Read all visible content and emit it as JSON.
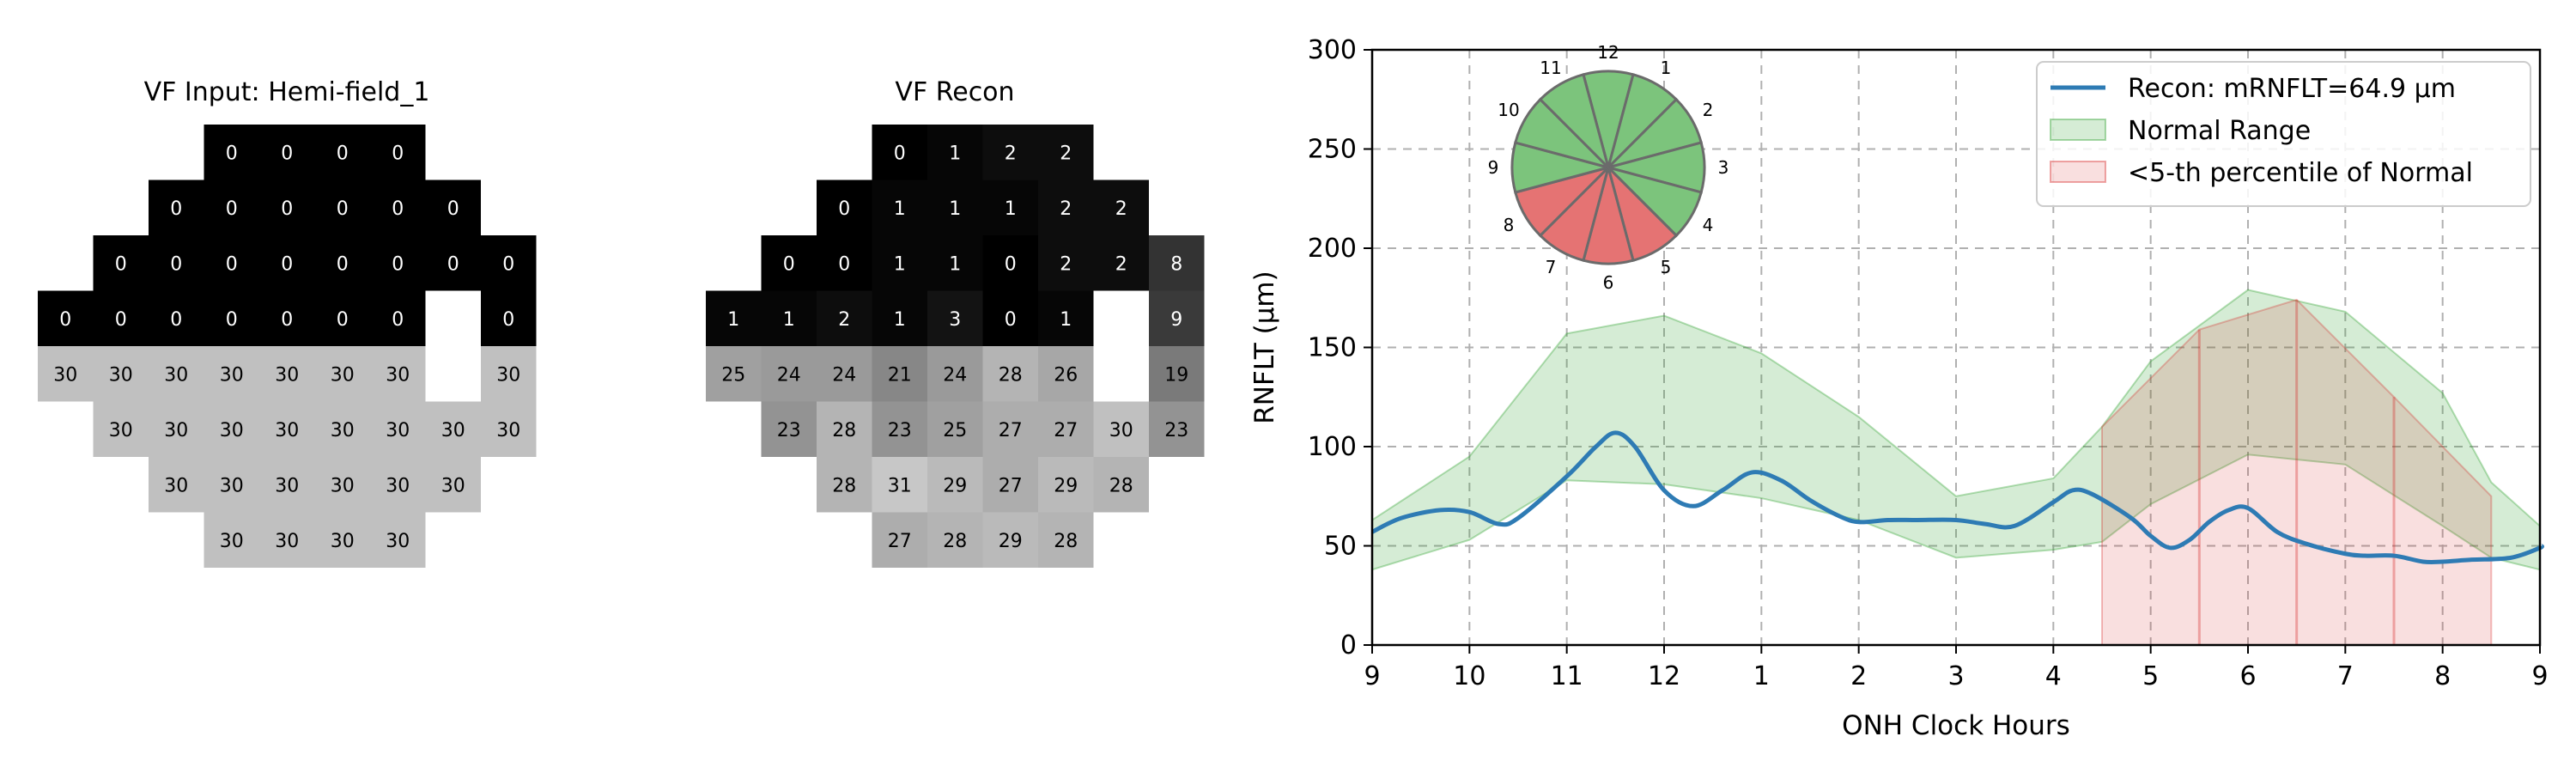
{
  "left_panel": {
    "title": "VF Input: Hemi-field_1",
    "rows": [
      {
        "start": 3,
        "cells": [
          0,
          0,
          0,
          0
        ]
      },
      {
        "start": 2,
        "cells": [
          0,
          0,
          0,
          0,
          0,
          0
        ]
      },
      {
        "start": 1,
        "cells": [
          0,
          0,
          0,
          0,
          0,
          0,
          0,
          0
        ]
      },
      {
        "start": 0,
        "cells": [
          0,
          0,
          0,
          0,
          0,
          0,
          0,
          null,
          0
        ]
      },
      {
        "start": 0,
        "cells": [
          30,
          30,
          30,
          30,
          30,
          30,
          30,
          null,
          30
        ]
      },
      {
        "start": 1,
        "cells": [
          30,
          30,
          30,
          30,
          30,
          30,
          30,
          30
        ]
      },
      {
        "start": 2,
        "cells": [
          30,
          30,
          30,
          30,
          30,
          30
        ]
      },
      {
        "start": 3,
        "cells": [
          30,
          30,
          30,
          30
        ]
      }
    ]
  },
  "middle_panel": {
    "title": "VF Recon",
    "rows": [
      {
        "start": 3,
        "cells": [
          0,
          1,
          2,
          2
        ]
      },
      {
        "start": 2,
        "cells": [
          0,
          1,
          1,
          1,
          2,
          2
        ]
      },
      {
        "start": 1,
        "cells": [
          0,
          0,
          1,
          1,
          0,
          2,
          2,
          8
        ]
      },
      {
        "start": 0,
        "cells": [
          1,
          1,
          2,
          1,
          3,
          0,
          1,
          null,
          9
        ]
      },
      {
        "start": 0,
        "cells": [
          25,
          24,
          24,
          21,
          24,
          28,
          26,
          null,
          19
        ]
      },
      {
        "start": 1,
        "cells": [
          23,
          28,
          23,
          25,
          27,
          27,
          30,
          23
        ]
      },
      {
        "start": 2,
        "cells": [
          28,
          31,
          29,
          27,
          29,
          28
        ]
      },
      {
        "start": 3,
        "cells": [
          27,
          28,
          29,
          28
        ]
      }
    ]
  },
  "chart_data": {
    "type": "line",
    "title": "",
    "xlabel": "ONH Clock Hours",
    "ylabel": "RNFLT (μm)",
    "ylim": [
      0,
      300
    ],
    "yticks": [
      0,
      50,
      100,
      150,
      200,
      250,
      300
    ],
    "xticks": [
      "9",
      "10",
      "11",
      "12",
      "1",
      "2",
      "3",
      "4",
      "5",
      "6",
      "7",
      "8",
      "9"
    ],
    "grid": true,
    "legend_position": "top-right",
    "series": [
      {
        "name": "Recon: mRNFLT=64.9 μm",
        "color": "#2e7bb4",
        "points": [
          [
            9,
            57
          ],
          [
            9.3,
            64
          ],
          [
            9.7,
            68
          ],
          [
            10,
            67
          ],
          [
            10.3,
            61
          ],
          [
            10.5,
            64
          ],
          [
            11,
            85
          ],
          [
            11.3,
            100
          ],
          [
            11.5,
            107
          ],
          [
            11.7,
            100
          ],
          [
            12,
            78
          ],
          [
            12.3,
            70
          ],
          [
            12.6,
            78
          ],
          [
            12.9,
            87
          ],
          [
            13.2,
            83
          ],
          [
            13.5,
            73
          ],
          [
            13.8,
            65
          ],
          [
            14,
            62
          ],
          [
            14.3,
            63
          ],
          [
            14.6,
            63
          ],
          [
            15,
            63
          ],
          [
            15.3,
            61
          ],
          [
            15.6,
            60
          ],
          [
            16,
            72
          ],
          [
            16.2,
            78
          ],
          [
            16.4,
            76
          ],
          [
            16.8,
            64
          ],
          [
            17,
            55
          ],
          [
            17.2,
            49
          ],
          [
            17.4,
            53
          ],
          [
            17.6,
            62
          ],
          [
            17.8,
            68
          ],
          [
            18,
            69
          ],
          [
            18.3,
            57
          ],
          [
            18.6,
            51
          ],
          [
            19,
            46
          ],
          [
            19.2,
            45
          ],
          [
            19.5,
            45
          ],
          [
            19.8,
            42
          ],
          [
            20,
            42
          ],
          [
            20.3,
            43
          ],
          [
            20.7,
            44
          ],
          [
            21,
            49
          ],
          [
            21.05,
            50
          ]
        ]
      },
      {
        "name": "Normal Range",
        "color": "#2ca02c",
        "upper": [
          [
            9,
            63
          ],
          [
            10,
            95
          ],
          [
            11,
            157
          ],
          [
            12,
            166
          ],
          [
            13,
            147
          ],
          [
            14,
            115
          ],
          [
            15,
            75
          ],
          [
            16,
            84
          ],
          [
            16.5,
            110
          ],
          [
            17,
            143
          ],
          [
            18,
            179
          ],
          [
            19,
            168
          ],
          [
            20,
            127
          ],
          [
            20.5,
            82
          ],
          [
            21,
            60
          ],
          [
            21.05,
            60
          ]
        ],
        "lower": [
          [
            9,
            38
          ],
          [
            10,
            53
          ],
          [
            11,
            83
          ],
          [
            12,
            81
          ],
          [
            13,
            74
          ],
          [
            14,
            63
          ],
          [
            15,
            44
          ],
          [
            16,
            48
          ],
          [
            16.5,
            52
          ],
          [
            17,
            71
          ],
          [
            18,
            96
          ],
          [
            19,
            91
          ],
          [
            20,
            60
          ],
          [
            20.5,
            44
          ],
          [
            21,
            38
          ],
          [
            21.05,
            38
          ]
        ]
      },
      {
        "name": "<5-th percentile of Normal",
        "color": "#d62728",
        "upper": [
          [
            16.5,
            110
          ],
          [
            17.5,
            159
          ],
          [
            18.5,
            174
          ],
          [
            19.5,
            125
          ],
          [
            20.5,
            75
          ]
        ],
        "x_start": 16.5,
        "x_end": 20.5,
        "dividers": [
          17.5,
          18.5,
          19.5
        ]
      }
    ],
    "inset_clock": {
      "labels": [
        "12",
        "1",
        "2",
        "3",
        "4",
        "5",
        "6",
        "7",
        "8",
        "9",
        "10",
        "11"
      ],
      "sector_colors": [
        "green",
        "green",
        "green",
        "green",
        "green",
        "red",
        "red",
        "red",
        "red",
        "green",
        "green",
        "green"
      ]
    }
  },
  "colors": {
    "green_sector": "#7cc47c",
    "red_sector": "#e57373"
  }
}
